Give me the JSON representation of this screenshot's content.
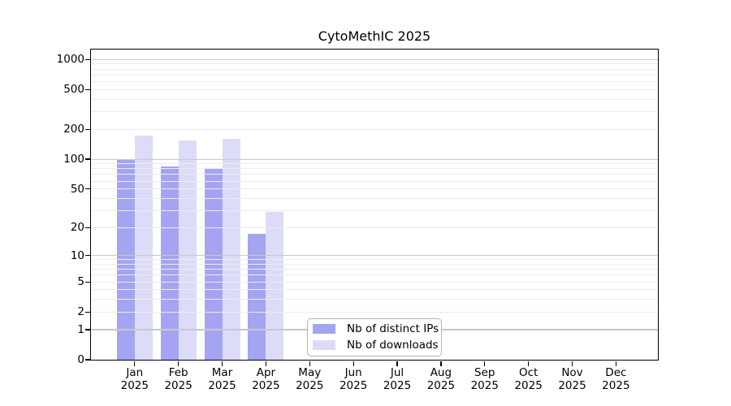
{
  "title": "CytoMethIC 2025",
  "chart_data": {
    "type": "bar",
    "title": "CytoMethIC 2025",
    "x_categories": [
      "Jan 2025",
      "Feb 2025",
      "Mar 2025",
      "Apr 2025",
      "May 2025",
      "Jun 2025",
      "Jul 2025",
      "Aug 2025",
      "Sep 2025",
      "Oct 2025",
      "Nov 2025",
      "Dec 2025"
    ],
    "series": [
      {
        "name": "Nb of distinct IPs",
        "color": "#a4a4f2",
        "values": [
          100,
          85,
          82,
          17,
          0,
          0,
          0,
          0,
          0,
          0,
          0,
          0
        ]
      },
      {
        "name": "Nb of downloads",
        "color": "#dcdcf8",
        "values": [
          173,
          155,
          161,
          29,
          0,
          0,
          0,
          0,
          0,
          0,
          0,
          0
        ]
      }
    ],
    "y_scale": "log10(1+x)",
    "y_ticks": [
      0,
      1,
      2,
      5,
      10,
      20,
      50,
      100,
      200,
      500,
      1000
    ],
    "y_minor_gridlines": "2-9, 20-90, 200-900 (light); 1, 10, 100, 1000 (darker)",
    "ylim": [
      0,
      1260
    ],
    "grid": true,
    "legend_position": "inside bottom-center",
    "xlabel": "",
    "ylabel": ""
  },
  "colors": {
    "bar_distinct_ips": "#a4a4f2",
    "bar_downloads": "#dcdcf8",
    "grid_minor": "#ececec",
    "grid_major": "#c8c8c8",
    "axis": "#000000",
    "legend_border": "#b2b2b2",
    "background": "#ffffff"
  }
}
